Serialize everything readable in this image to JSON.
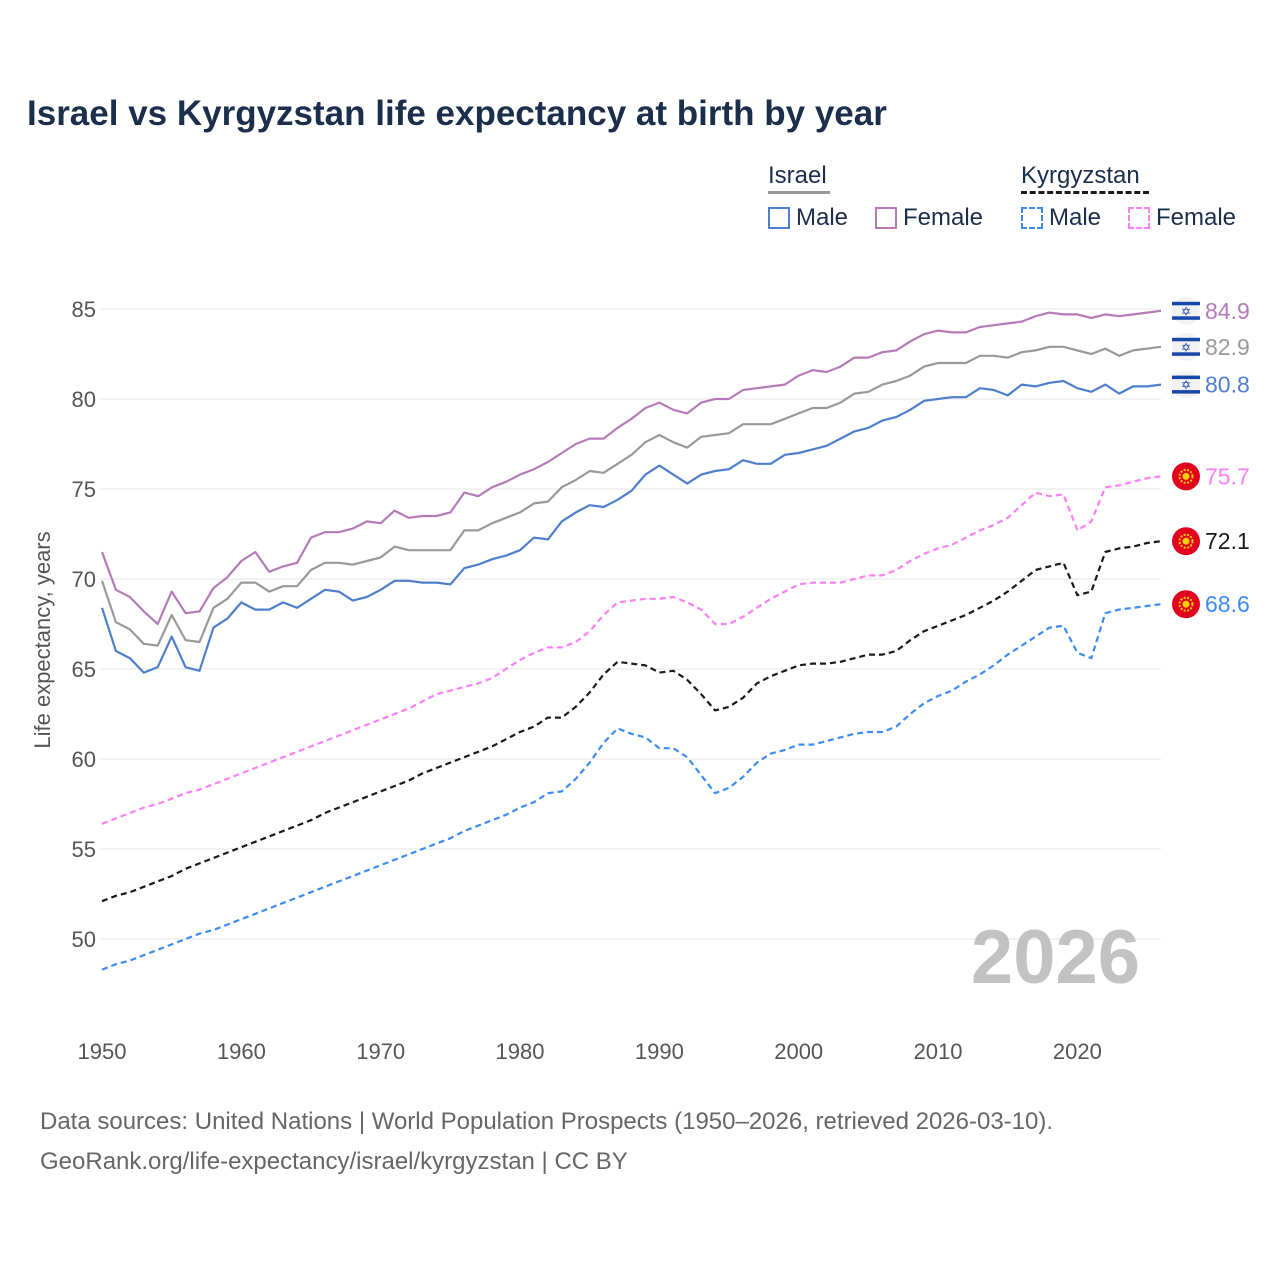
{
  "chart_data": {
    "type": "line",
    "title": "Israel vs Kyrgyzstan life expectancy at birth by year",
    "xlabel": "",
    "ylabel": "Life expectancy, years",
    "xlim": [
      1950,
      2026
    ],
    "ylim": [
      50,
      85
    ],
    "grid": true,
    "legend_placement": "top-right",
    "x_ticks": [
      1950,
      1960,
      1970,
      1980,
      1990,
      2000,
      2010,
      2020
    ],
    "y_ticks": [
      50,
      55,
      60,
      65,
      70,
      75,
      80,
      85
    ],
    "year_watermark": "2026",
    "x_start": 1950,
    "series": [
      {
        "name": "Israel Female",
        "country": "Israel",
        "sex": "Female",
        "color": "#b57bb8",
        "dash": false,
        "end_label": "84.9",
        "flag": "israel-flag",
        "values": [
          71.5,
          69.4,
          69.0,
          68.2,
          67.5,
          69.3,
          68.1,
          68.2,
          69.5,
          70.1,
          71.0,
          71.5,
          70.4,
          70.7,
          70.9,
          72.3,
          72.6,
          72.6,
          72.8,
          73.2,
          73.1,
          73.8,
          73.4,
          73.5,
          73.5,
          73.7,
          74.8,
          74.6,
          75.1,
          75.4,
          75.8,
          76.1,
          76.5,
          77.0,
          77.5,
          77.8,
          77.8,
          78.4,
          78.9,
          79.5,
          79.8,
          79.4,
          79.2,
          79.8,
          80.0,
          80.0,
          80.5,
          80.6,
          80.7,
          80.8,
          81.3,
          81.6,
          81.5,
          81.8,
          82.3,
          82.3,
          82.6,
          82.7,
          83.2,
          83.6,
          83.8,
          83.7,
          83.7,
          84.0,
          84.1,
          84.2,
          84.3,
          84.6,
          84.8,
          84.7,
          84.7,
          84.5,
          84.7,
          84.6,
          84.7,
          84.8,
          84.9
        ]
      },
      {
        "name": "Israel",
        "country": "Israel",
        "sex": "Total",
        "color": "#999999",
        "dash": false,
        "end_label": "82.9",
        "flag": "israel-flag",
        "values": [
          69.9,
          67.6,
          67.2,
          66.4,
          66.3,
          68.0,
          66.6,
          66.5,
          68.4,
          68.9,
          69.8,
          69.8,
          69.3,
          69.6,
          69.6,
          70.5,
          70.9,
          70.9,
          70.8,
          71.0,
          71.2,
          71.8,
          71.6,
          71.6,
          71.6,
          71.6,
          72.7,
          72.7,
          73.1,
          73.4,
          73.7,
          74.2,
          74.3,
          75.1,
          75.5,
          76.0,
          75.9,
          76.4,
          76.9,
          77.6,
          78.0,
          77.6,
          77.3,
          77.9,
          78.0,
          78.1,
          78.6,
          78.6,
          78.6,
          78.9,
          79.2,
          79.5,
          79.5,
          79.8,
          80.3,
          80.4,
          80.8,
          81.0,
          81.3,
          81.8,
          82.0,
          82.0,
          82.0,
          82.4,
          82.4,
          82.3,
          82.6,
          82.7,
          82.9,
          82.9,
          82.7,
          82.5,
          82.8,
          82.4,
          82.7,
          82.8,
          82.9
        ]
      },
      {
        "name": "Israel Male",
        "country": "Israel",
        "sex": "Male",
        "color": "#4f7fcc",
        "dash": false,
        "end_label": "80.8",
        "flag": "israel-flag",
        "values": [
          68.4,
          66.0,
          65.6,
          64.8,
          65.1,
          66.8,
          65.1,
          64.9,
          67.3,
          67.8,
          68.7,
          68.3,
          68.3,
          68.7,
          68.4,
          68.9,
          69.4,
          69.3,
          68.8,
          69.0,
          69.4,
          69.9,
          69.9,
          69.8,
          69.8,
          69.7,
          70.6,
          70.8,
          71.1,
          71.3,
          71.6,
          72.3,
          72.2,
          73.2,
          73.7,
          74.1,
          74.0,
          74.4,
          74.9,
          75.8,
          76.3,
          75.8,
          75.3,
          75.8,
          76.0,
          76.1,
          76.6,
          76.4,
          76.4,
          76.9,
          77.0,
          77.2,
          77.4,
          77.8,
          78.2,
          78.4,
          78.8,
          79.0,
          79.4,
          79.9,
          80.0,
          80.1,
          80.1,
          80.6,
          80.5,
          80.2,
          80.8,
          80.7,
          80.9,
          81.0,
          80.6,
          80.4,
          80.8,
          80.3,
          80.7,
          80.7,
          80.8
        ]
      },
      {
        "name": "Kyrgyzstan Female",
        "country": "Kyrgyzstan",
        "sex": "Female",
        "color": "#fc80f4",
        "dash": true,
        "end_label": "75.7",
        "flag": "kyrgyzstan-flag",
        "values": [
          56.4,
          56.7,
          57.0,
          57.3,
          57.5,
          57.8,
          58.1,
          58.3,
          58.6,
          58.9,
          59.2,
          59.5,
          59.8,
          60.1,
          60.4,
          60.7,
          61.0,
          61.3,
          61.6,
          61.9,
          62.2,
          62.5,
          62.8,
          63.2,
          63.6,
          63.8,
          64.0,
          64.2,
          64.5,
          65.0,
          65.5,
          65.9,
          66.2,
          66.2,
          66.5,
          67.1,
          68.0,
          68.7,
          68.8,
          68.9,
          68.9,
          69.0,
          68.7,
          68.3,
          67.5,
          67.5,
          67.9,
          68.4,
          68.9,
          69.3,
          69.7,
          69.8,
          69.8,
          69.8,
          70.0,
          70.2,
          70.2,
          70.5,
          71.0,
          71.4,
          71.7,
          71.9,
          72.3,
          72.7,
          73.0,
          73.4,
          74.1,
          74.8,
          74.6,
          74.7,
          72.7,
          73.2,
          75.1,
          75.2,
          75.4,
          75.6,
          75.7
        ]
      },
      {
        "name": "Kyrgyzstan",
        "country": "Kyrgyzstan",
        "sex": "Total",
        "color": "#1a1a1a",
        "dash": true,
        "end_label": "72.1",
        "flag": "kyrgyzstan-flag",
        "values": [
          52.1,
          52.4,
          52.6,
          52.9,
          53.2,
          53.5,
          53.9,
          54.2,
          54.5,
          54.8,
          55.1,
          55.4,
          55.7,
          56.0,
          56.3,
          56.6,
          57.0,
          57.3,
          57.6,
          57.9,
          58.2,
          58.5,
          58.8,
          59.2,
          59.5,
          59.8,
          60.1,
          60.4,
          60.7,
          61.1,
          61.5,
          61.8,
          62.3,
          62.3,
          62.9,
          63.7,
          64.7,
          65.4,
          65.3,
          65.2,
          64.8,
          64.9,
          64.4,
          63.6,
          62.7,
          62.9,
          63.4,
          64.2,
          64.6,
          64.9,
          65.2,
          65.3,
          65.3,
          65.4,
          65.6,
          65.8,
          65.8,
          66.0,
          66.6,
          67.1,
          67.4,
          67.7,
          68.0,
          68.4,
          68.8,
          69.3,
          69.9,
          70.5,
          70.7,
          70.9,
          69.1,
          69.3,
          71.5,
          71.7,
          71.8,
          72.0,
          72.1
        ]
      },
      {
        "name": "Kyrgyzstan Male",
        "country": "Kyrgyzstan",
        "sex": "Male",
        "color": "#3d8bf5",
        "dash": true,
        "end_label": "68.6",
        "flag": "kyrgyzstan-flag",
        "values": [
          48.3,
          48.6,
          48.8,
          49.1,
          49.4,
          49.7,
          50.0,
          50.3,
          50.5,
          50.8,
          51.1,
          51.4,
          51.7,
          52.0,
          52.3,
          52.6,
          52.9,
          53.2,
          53.5,
          53.8,
          54.1,
          54.4,
          54.7,
          55.0,
          55.3,
          55.6,
          56.0,
          56.3,
          56.6,
          56.9,
          57.3,
          57.6,
          58.1,
          58.2,
          58.9,
          59.8,
          60.9,
          61.7,
          61.4,
          61.2,
          60.6,
          60.6,
          60.1,
          59.1,
          58.1,
          58.4,
          59.0,
          59.8,
          60.3,
          60.5,
          60.8,
          60.8,
          61.0,
          61.2,
          61.4,
          61.5,
          61.5,
          61.8,
          62.5,
          63.1,
          63.5,
          63.8,
          64.3,
          64.7,
          65.2,
          65.8,
          66.3,
          66.8,
          67.3,
          67.4,
          65.9,
          65.6,
          68.1,
          68.3,
          68.4,
          68.5,
          68.6
        ]
      }
    ]
  },
  "legend": {
    "israel": {
      "label": "Israel",
      "items": [
        {
          "label": "Male",
          "color": "#4f7fcc"
        },
        {
          "label": "Female",
          "color": "#b57bb8"
        }
      ]
    },
    "kyrgyzstan": {
      "label": "Kyrgyzstan",
      "items": [
        {
          "label": "Male",
          "color": "#3d8bf5"
        },
        {
          "label": "Female",
          "color": "#fc80f4"
        }
      ]
    }
  },
  "source": {
    "line1": "Data sources: United Nations | World Population Prospects (1950–2026, retrieved 2026-03-10).",
    "line2": "GeoRank.org/life-expectancy/israel/kyrgyzstan | CC BY"
  }
}
